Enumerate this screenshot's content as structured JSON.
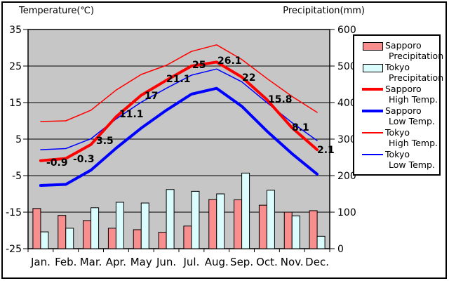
{
  "chart_data": {
    "type": "combo-bar-line",
    "title_left": "Temperature(℃)",
    "title_right": "Precipitation(mm)",
    "categories": [
      "Jan.",
      "Feb.",
      "Mar.",
      "Apr.",
      "May",
      "Jun.",
      "Jul.",
      "Aug.",
      "Sep.",
      "Oct.",
      "Nov.",
      "Dec."
    ],
    "temp_axis": {
      "label": "Temperature(℃)",
      "ticks": [
        35,
        25,
        15,
        5,
        -5,
        -15,
        -25
      ],
      "min": -25,
      "max": 35
    },
    "precip_axis": {
      "label": "Precipitation(mm)",
      "ticks": [
        600,
        500,
        400,
        300,
        200,
        100,
        0
      ],
      "min": 0,
      "max": 600
    },
    "plot_bg": "#C6C6C6",
    "grid_color": "#000000",
    "bar_series": [
      {
        "name": "Sapporo Precipitation",
        "color": "#F88E8E",
        "values": [
          110,
          91,
          77,
          56,
          52,
          45,
          62,
          135,
          134,
          119,
          100,
          104
        ]
      },
      {
        "name": "Tokyo Precipitation",
        "color": "#DBFCFC",
        "values": [
          46,
          56,
          112,
          127,
          125,
          162,
          157,
          150,
          207,
          160,
          90,
          34
        ]
      }
    ],
    "line_series": [
      {
        "name": "Tokyo High Temp.",
        "color": "#FF0000",
        "width": 1.5,
        "values": [
          9.8,
          10,
          12.9,
          18.4,
          22.7,
          25.2,
          29,
          30.8,
          26.8,
          21.6,
          16.7,
          12.3
        ]
      },
      {
        "name": "Tokyo Low Temp.",
        "color": "#0000FF",
        "width": 1.5,
        "values": [
          2.1,
          2.4,
          5.1,
          10.5,
          15.1,
          18.9,
          22.5,
          24.2,
          20.7,
          15,
          9.5,
          4.6
        ]
      },
      {
        "name": "Sapporo High Temp.",
        "color": "#FF0000",
        "width": 4,
        "values": [
          -0.9,
          -0.3,
          3.5,
          11.1,
          17,
          21.1,
          25,
          26.1,
          22,
          15.8,
          8.1,
          2.1
        ],
        "point_labels": [
          "-0.9",
          "-0.3",
          "3.5",
          "11.1",
          "17",
          "21.1",
          "25",
          "26.1",
          "22",
          "15.8",
          "8.1",
          "2.1"
        ]
      },
      {
        "name": "Sapporo Low Temp.",
        "color": "#0000FF",
        "width": 4,
        "values": [
          -7.7,
          -7.4,
          -3.5,
          2.5,
          8,
          12.9,
          17.3,
          18.9,
          14,
          7.2,
          1,
          -4.6
        ]
      }
    ]
  },
  "legend": {
    "items": [
      {
        "line1": "Sapporo",
        "line2": "Precipitation",
        "swatch": "bar",
        "color": "#F88E8E"
      },
      {
        "line1": "Tokyo",
        "line2": "Precipitation",
        "swatch": "bar",
        "color": "#DBFCFC"
      },
      {
        "line1": "Sapporo",
        "line2": "High Temp.",
        "swatch": "thick-line",
        "color": "#FF0000"
      },
      {
        "line1": "Sapporo",
        "line2": "Low Temp.",
        "swatch": "thick-line",
        "color": "#0000FF"
      },
      {
        "line1": "Tokyo",
        "line2": "High Temp.",
        "swatch": "thin-line",
        "color": "#FF0000"
      },
      {
        "line1": "Tokyo",
        "line2": "Low Temp.",
        "swatch": "thin-line",
        "color": "#0000FF"
      }
    ]
  }
}
